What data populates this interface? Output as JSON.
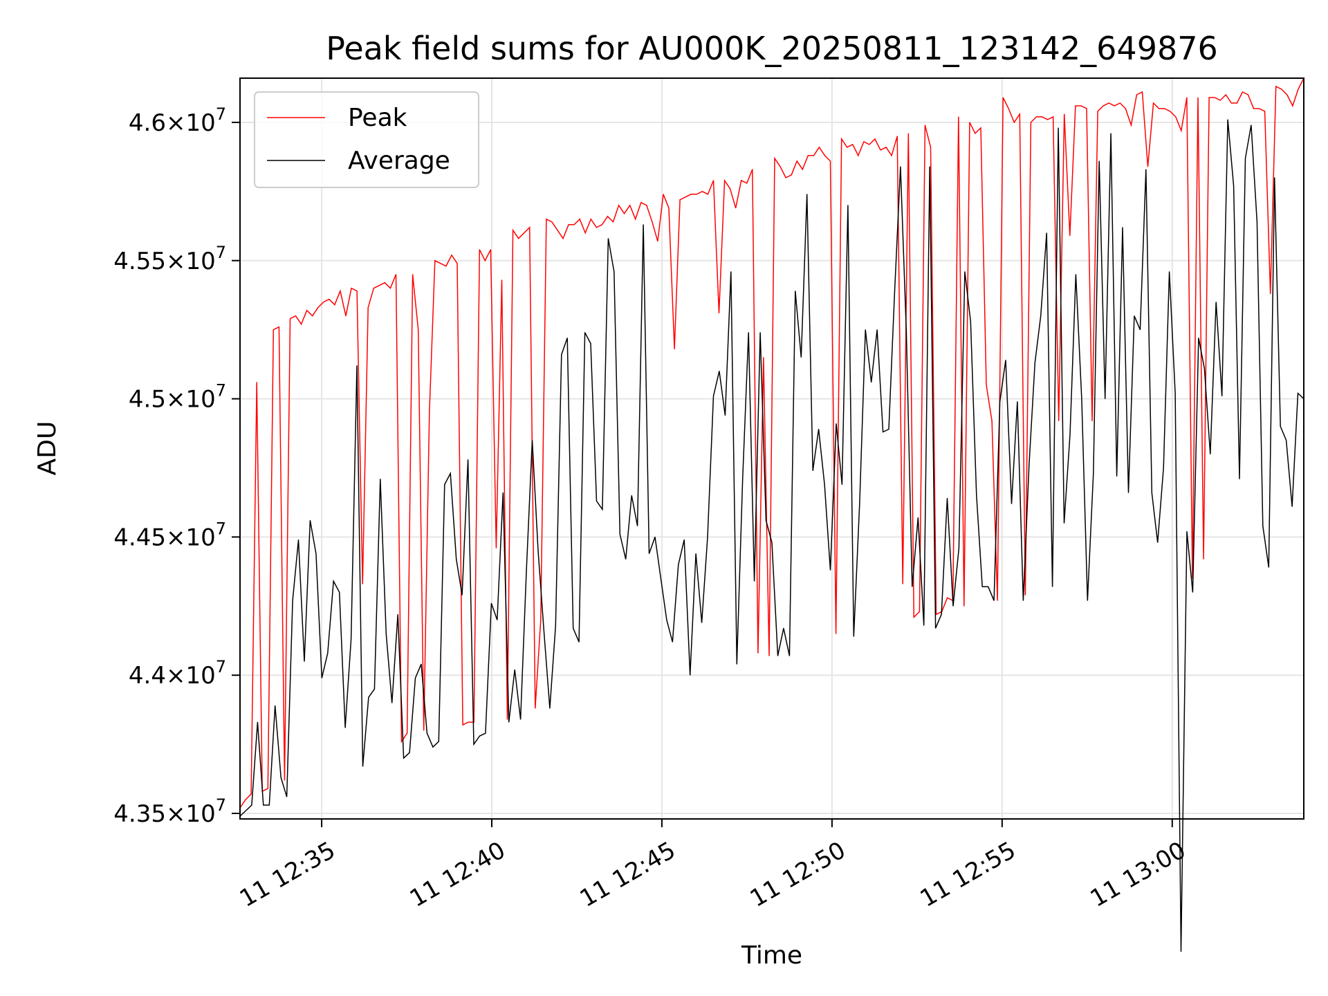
{
  "chart_data": {
    "type": "line",
    "title": "Peak field sums for AU000K_20250811_123142_649876",
    "xlabel": "Time",
    "ylabel": "ADU",
    "x_start": "2025-08-11 12:32:36",
    "x_end": "2025-08-11 13:03:52",
    "xlim": [
      "2025-08-11 12:32:36",
      "2025-08-11 13:03:52"
    ],
    "ylim": [
      43480000,
      46160000
    ],
    "x_ticks": [
      "2025-08-11 12:35",
      "2025-08-11 12:40",
      "2025-08-11 12:45",
      "2025-08-11 12:50",
      "2025-08-11 12:55",
      "2025-08-11 13:00"
    ],
    "x_tick_labels": [
      "11 12:35",
      "11 12:40",
      "11 12:45",
      "11 12:50",
      "11 12:55",
      "11 13:00"
    ],
    "y_ticks": [
      43500000,
      44000000,
      44500000,
      45000000,
      45500000,
      46000000
    ],
    "y_tick_labels": [
      {
        "mantissa": "4.35",
        "base": "10",
        "exp": "7"
      },
      {
        "mantissa": "4.4",
        "base": "10",
        "exp": "7"
      },
      {
        "mantissa": "4.45",
        "base": "10",
        "exp": "7"
      },
      {
        "mantissa": "4.5",
        "base": "10",
        "exp": "7"
      },
      {
        "mantissa": "4.55",
        "base": "10",
        "exp": "7"
      },
      {
        "mantissa": "4.6",
        "base": "10",
        "exp": "7"
      }
    ],
    "grid": true,
    "legend_position": "upper-left",
    "series": [
      {
        "name": "Peak",
        "color": "#ff0000",
        "values": [
          43520000,
          43550000,
          43570000,
          45060000,
          43580000,
          43590000,
          45250000,
          45260000,
          43620000,
          45290000,
          45300000,
          45270000,
          45320000,
          45300000,
          45330000,
          45350000,
          45360000,
          45340000,
          45390000,
          45300000,
          45400000,
          45390000,
          44330000,
          45330000,
          45400000,
          45410000,
          45420000,
          45400000,
          45450000,
          43760000,
          43790000,
          45450000,
          45250000,
          43800000,
          44950000,
          45500000,
          45490000,
          45480000,
          45520000,
          45490000,
          43820000,
          43830000,
          43830000,
          45540000,
          45500000,
          45540000,
          44460000,
          45430000,
          43840000,
          45610000,
          45580000,
          45600000,
          45620000,
          43880000,
          44200000,
          45650000,
          45640000,
          45610000,
          45580000,
          45630000,
          45630000,
          45650000,
          45600000,
          45650000,
          45620000,
          45630000,
          45660000,
          45640000,
          45700000,
          45670000,
          45700000,
          45650000,
          45710000,
          45700000,
          45640000,
          45570000,
          45740000,
          45690000,
          45180000,
          45720000,
          45730000,
          45740000,
          45740000,
          45750000,
          45740000,
          45790000,
          45310000,
          45790000,
          45760000,
          45690000,
          45790000,
          45780000,
          45830000,
          44080000,
          45150000,
          44070000,
          45870000,
          45840000,
          45800000,
          45810000,
          45860000,
          45830000,
          45880000,
          45880000,
          45910000,
          45880000,
          45860000,
          44150000,
          45940000,
          45910000,
          45920000,
          45880000,
          45930000,
          45920000,
          45940000,
          45900000,
          45910000,
          45880000,
          45950000,
          44330000,
          45960000,
          44210000,
          44230000,
          45990000,
          45910000,
          44220000,
          44230000,
          44280000,
          44270000,
          46020000,
          44250000,
          46000000,
          45960000,
          45980000,
          45050000,
          44920000,
          44270000,
          46090000,
          46050000,
          46000000,
          46030000,
          44290000,
          46000000,
          46020000,
          46020000,
          46010000,
          46020000,
          44920000,
          46030000,
          45590000,
          46060000,
          46060000,
          46050000,
          44920000,
          46040000,
          46060000,
          46070000,
          46060000,
          46070000,
          46050000,
          45990000,
          46100000,
          46110000,
          45840000,
          46070000,
          46050000,
          46050000,
          46040000,
          46020000,
          45970000,
          46090000,
          44350000,
          46090000,
          44420000,
          46090000,
          46090000,
          46080000,
          46100000,
          46070000,
          46070000,
          46110000,
          46100000,
          46050000,
          46050000,
          46040000,
          45380000,
          46130000,
          46120000,
          46100000,
          46060000,
          46120000,
          46160000
        ]
      },
      {
        "name": "Average",
        "color": "#000000",
        "values": [
          43490000,
          43510000,
          43530000,
          43830000,
          43530000,
          43530000,
          43890000,
          43630000,
          43560000,
          44270000,
          44490000,
          44050000,
          44560000,
          44440000,
          43990000,
          44080000,
          44340000,
          44300000,
          43810000,
          44130000,
          45120000,
          43670000,
          43920000,
          43950000,
          44710000,
          44150000,
          43900000,
          44220000,
          43700000,
          43720000,
          43990000,
          44040000,
          43790000,
          43740000,
          43760000,
          44690000,
          44730000,
          44420000,
          44290000,
          44780000,
          43750000,
          43780000,
          43790000,
          44260000,
          44200000,
          44660000,
          43830000,
          44020000,
          43840000,
          44380000,
          44850000,
          44450000,
          44160000,
          43880000,
          44180000,
          45160000,
          45220000,
          44170000,
          44120000,
          45240000,
          45200000,
          44630000,
          44600000,
          45580000,
          45460000,
          44510000,
          44420000,
          44650000,
          44540000,
          45630000,
          44440000,
          44500000,
          44350000,
          44200000,
          44120000,
          44400000,
          44490000,
          44000000,
          44440000,
          44190000,
          44500000,
          45010000,
          45100000,
          44940000,
          45460000,
          44040000,
          44710000,
          45240000,
          44340000,
          45240000,
          44560000,
          44480000,
          44070000,
          44170000,
          44070000,
          45390000,
          45150000,
          45740000,
          44740000,
          44890000,
          44690000,
          44380000,
          44910000,
          44690000,
          45700000,
          44140000,
          44620000,
          45250000,
          45060000,
          45250000,
          44880000,
          44890000,
          45390000,
          45840000,
          45240000,
          44320000,
          44570000,
          44180000,
          45840000,
          44170000,
          44220000,
          44640000,
          44250000,
          44460000,
          45460000,
          45280000,
          44650000,
          44320000,
          44320000,
          44270000,
          44990000,
          45140000,
          44620000,
          44990000,
          44270000,
          44760000,
          45130000,
          45300000,
          45600000,
          44320000,
          45980000,
          44550000,
          44870000,
          45450000,
          45000000,
          44270000,
          44730000,
          45860000,
          45000000,
          45960000,
          44720000,
          45620000,
          44660000,
          45300000,
          45250000,
          45830000,
          44660000,
          44480000,
          44750000,
          45460000,
          45020000,
          43000000,
          44520000,
          44300000,
          45220000,
          45110000,
          44800000,
          45350000,
          45010000,
          46010000,
          45770000,
          44710000,
          45870000,
          45990000,
          45640000,
          44540000,
          44390000,
          45800000,
          44900000,
          44850000,
          44610000,
          45020000,
          45000000
        ]
      }
    ]
  }
}
